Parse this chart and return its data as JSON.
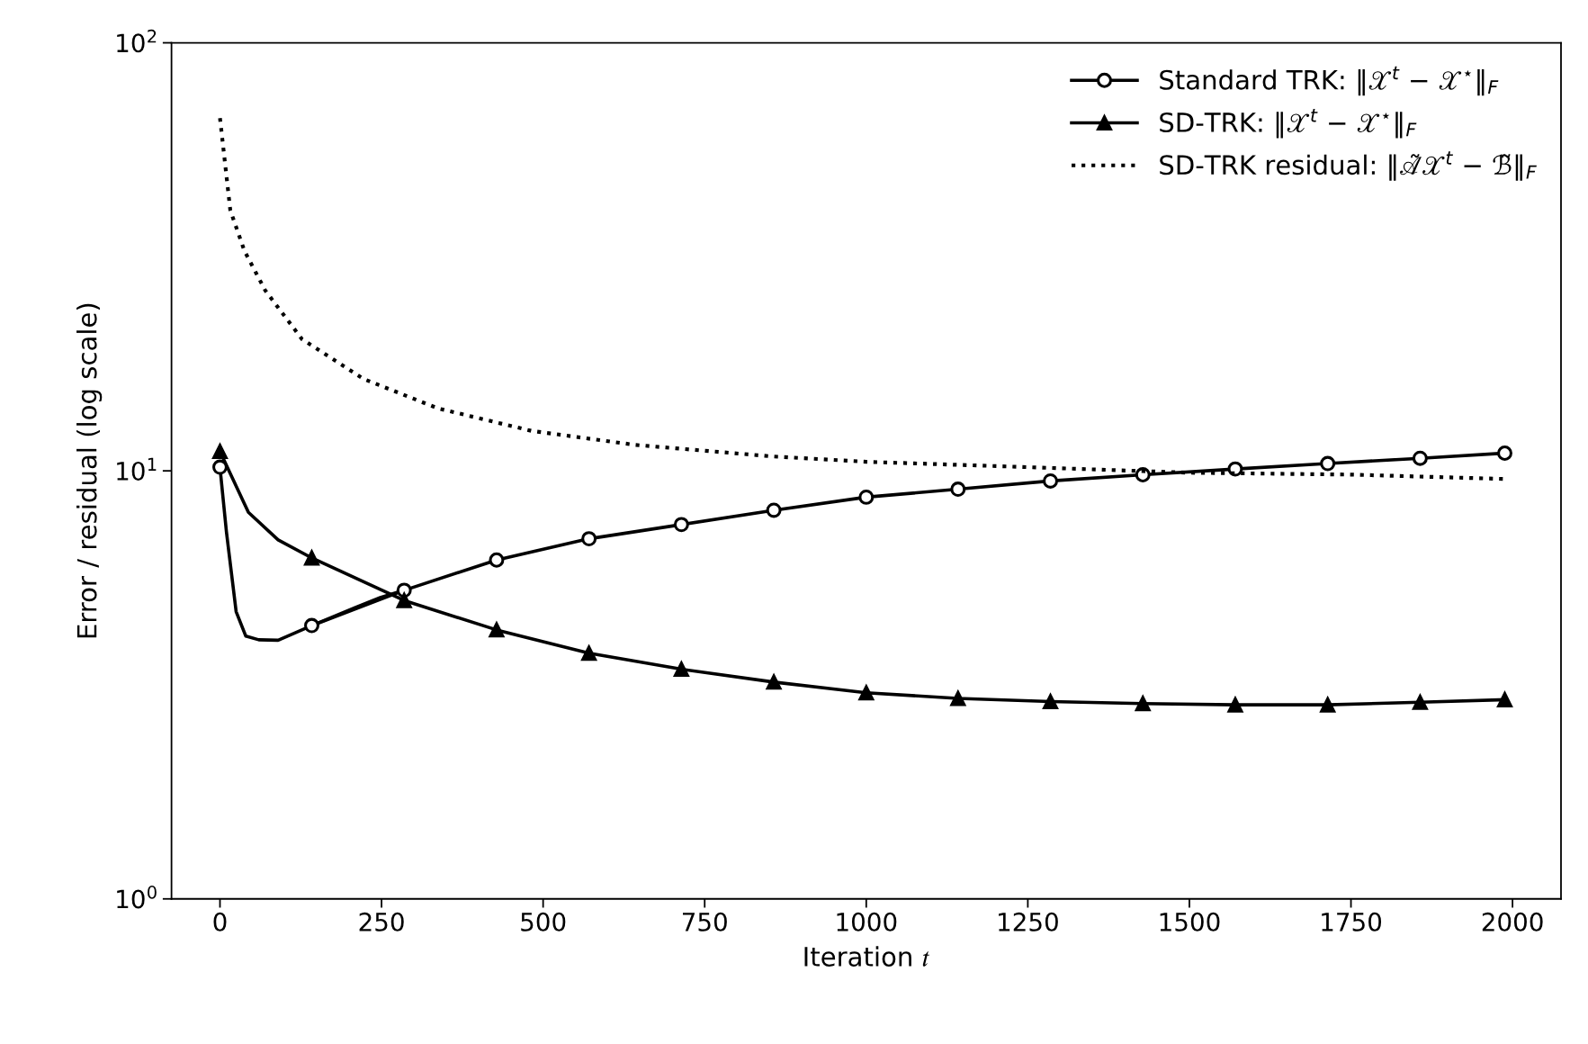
{
  "chart_data": {
    "type": "line",
    "xlabel": "Iteration 𝑡",
    "ylabel": "Error / residual (log scale)",
    "log": "y",
    "xlim": [
      -75,
      2075
    ],
    "ylim": [
      1,
      100
    ],
    "xticks": [
      0,
      250,
      500,
      750,
      1000,
      1250,
      1500,
      1750,
      2000
    ],
    "yticks": [
      {
        "value": 1,
        "label": "10$^{0}$"
      },
      {
        "value": 10,
        "label": "10$^{1}$"
      },
      {
        "value": 100,
        "label": "10$^{2}$"
      }
    ],
    "grid": false,
    "legend": "top right",
    "series": [
      {
        "color": "#000000",
        "line_style": "solid",
        "x": [
          0,
          10,
          25,
          40,
          60,
          90,
          142,
          209,
          248,
          285
        ],
        "values": [
          10.2,
          7.2,
          4.69,
          4.11,
          4.03,
          4.02,
          4.35,
          4.79,
          5.06,
          5.26
        ]
      },
      {
        "color": "#000000",
        "line_style": "solid",
        "x": [
          0,
          44,
          90,
          142
        ],
        "values": [
          11.1,
          8.0,
          6.9,
          6.26
        ]
      },
      {
        "name": "Standard TRK: ‖𝒳$^{t}$ − 𝒳$^{⋆}$‖$_{F}$",
        "color": "#000000",
        "marker": "circle",
        "line_style": "solid",
        "x": [
          0,
          71,
          142,
          285,
          428,
          571,
          714,
          857,
          1000,
          1142,
          1285,
          1428,
          1571,
          1714,
          1857,
          1988
        ],
        "values": [
          10.2,
          null,
          4.35,
          5.26,
          6.19,
          6.94,
          7.49,
          8.09,
          8.68,
          9.06,
          9.47,
          9.79,
          10.1,
          10.4,
          10.7,
          11.0
        ]
      },
      {
        "name": "SD-TRK: ‖𝒳$^{t}$ − 𝒳$^{⋆}$‖$_{F}$",
        "color": "#000000",
        "marker": "triangle",
        "line_style": "solid",
        "x": [
          0,
          71,
          142,
          285,
          428,
          571,
          714,
          857,
          1000,
          1142,
          1285,
          1428,
          1571,
          1714,
          1857,
          1988
        ],
        "values": [
          11.1,
          null,
          6.26,
          4.98,
          4.25,
          3.75,
          3.44,
          3.21,
          3.03,
          2.94,
          2.89,
          2.86,
          2.84,
          2.84,
          2.88,
          2.92
        ]
      },
      {
        "name": "SD-TRK residual: ‖𝒜̃𝒳$^{t}$ − ℬ̃‖$_{F}$",
        "color": "#000000",
        "marker": "none",
        "line_style": "dotted",
        "x": [
          0,
          16,
          38,
          70,
          127,
          222,
          337,
          482,
          642,
          857,
          1000,
          1250,
          1500,
          1750,
          1990
        ],
        "values": [
          66.7,
          40.6,
          32.6,
          26.4,
          20.3,
          16.4,
          14.0,
          12.4,
          11.5,
          10.8,
          10.5,
          10.2,
          9.9,
          9.8,
          9.57
        ]
      }
    ]
  }
}
